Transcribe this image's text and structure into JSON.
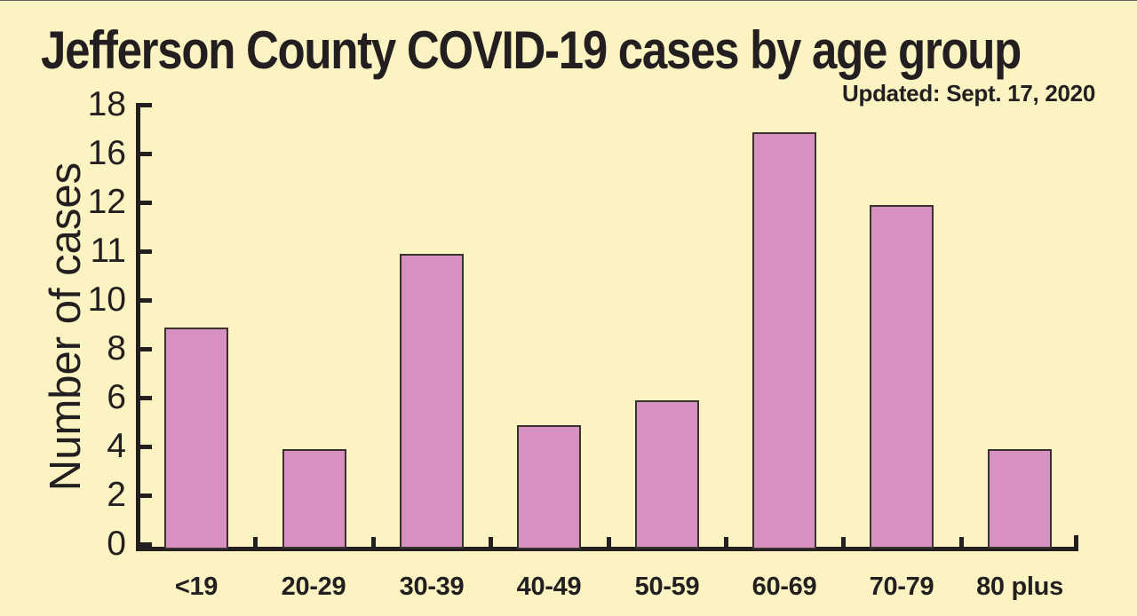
{
  "chart_data": {
    "type": "bar",
    "title": "Jefferson County COVID-19 cases by age group",
    "subtitle": "Updated: Sept. 17, 2020",
    "ylabel": "Number of cases",
    "xlabel": "",
    "categories": [
      "<19",
      "20-29",
      "30-39",
      "40-49",
      "50-59",
      "60-69",
      "70-79",
      "80 plus"
    ],
    "values": [
      9,
      4,
      11,
      5,
      6,
      17,
      12,
      4
    ],
    "y_axis": {
      "tick_labels_bottom_to_top": [
        "0",
        "2",
        "4",
        "6",
        "8",
        "10",
        "11",
        "12",
        "16",
        "18"
      ],
      "ticks_evenly_spaced": true,
      "range_shown": [
        0,
        18
      ]
    },
    "grid": false,
    "legend": "none",
    "colors": {
      "background": "#fbf3c2",
      "bar_fill": "#d691c0",
      "bar_border": "#3a322f",
      "axis_and_text": "#231f20"
    }
  }
}
